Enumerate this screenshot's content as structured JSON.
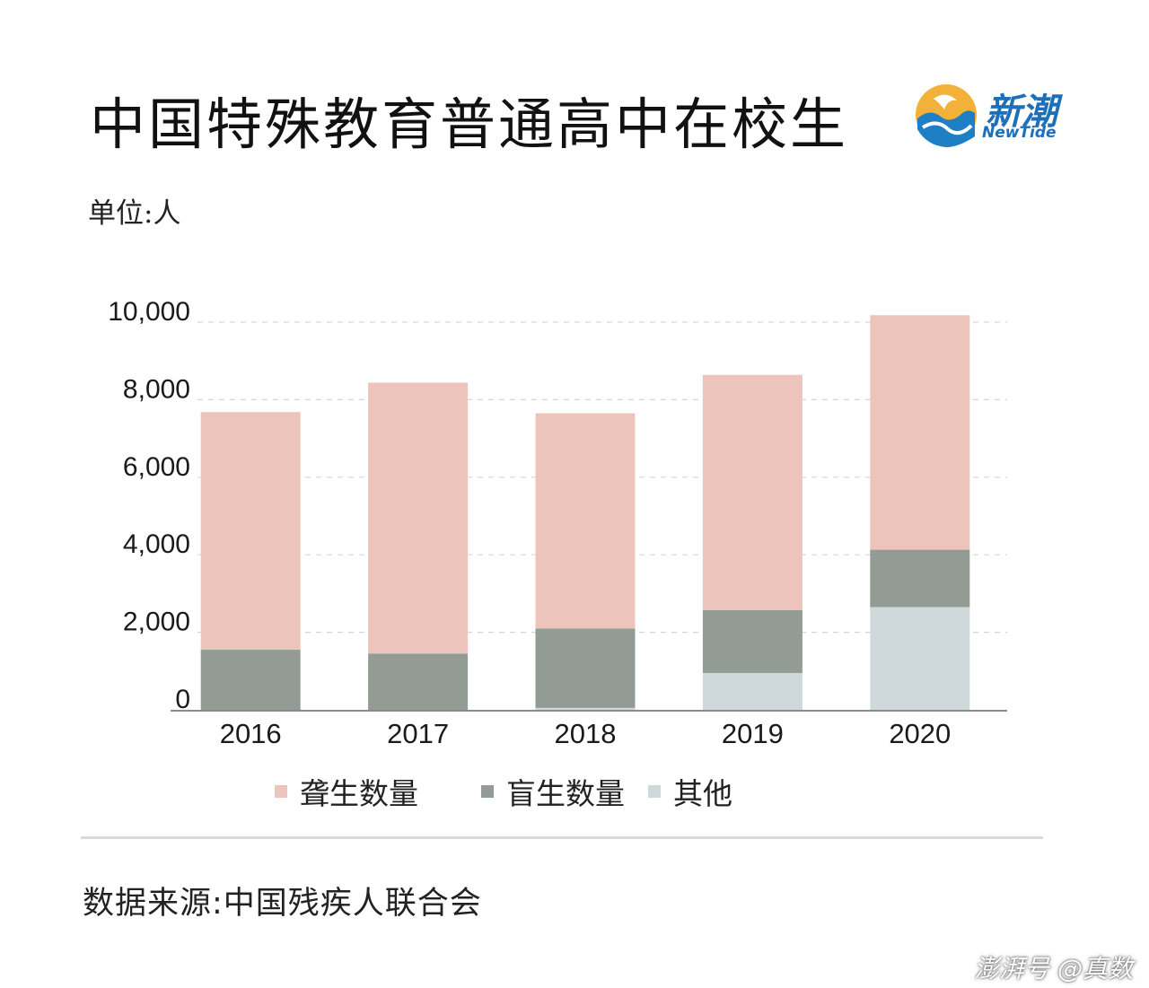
{
  "header": {
    "title": "中国特殊教育普通高中在校生",
    "logo_cn": "新潮",
    "logo_en": "NewTide"
  },
  "unit_label": "单位:人",
  "chart_data": {
    "type": "bar",
    "stacked": true,
    "categories": [
      "2016",
      "2017",
      "2018",
      "2019",
      "2020"
    ],
    "series": [
      {
        "name": "其他",
        "color": "#cfd8db",
        "values": [
          0,
          0,
          50,
          950,
          2650
        ]
      },
      {
        "name": "盲生数量",
        "color": "#939c94",
        "values": [
          1550,
          1450,
          2050,
          1620,
          1480
        ]
      },
      {
        "name": "聋生数量",
        "color": "#ecc4bc",
        "values": [
          6130,
          6990,
          5550,
          6070,
          6050
        ]
      }
    ],
    "ylim": [
      0,
      10000
    ],
    "yticks": [
      0,
      2000,
      4000,
      6000,
      8000,
      10000
    ],
    "ytick_labels": [
      "0",
      "2,000",
      "4,000",
      "6,000",
      "8,000",
      "10,000"
    ],
    "grid": true,
    "legend_position": "bottom",
    "legend_order": [
      "聋生数量",
      "盲生数量",
      "其他"
    ]
  },
  "source": "数据来源:中国残疾人联合会",
  "watermark": "澎湃号 @真数"
}
